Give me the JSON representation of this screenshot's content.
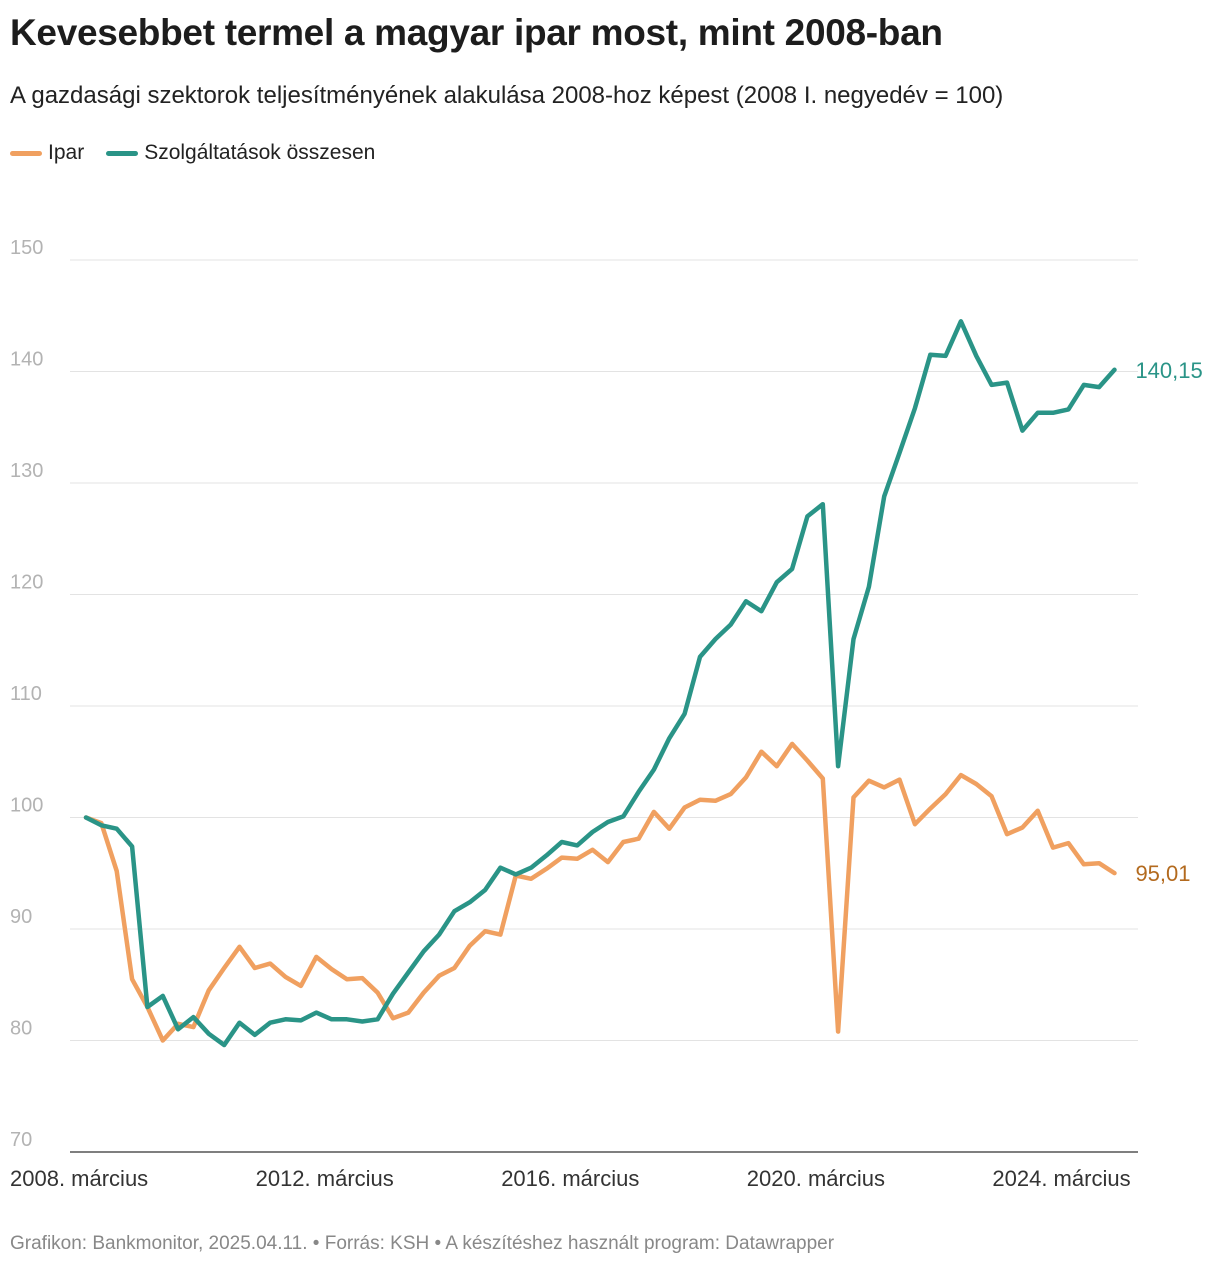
{
  "title": "Kevesebbet termel a magyar ipar most, mint 2008-ban",
  "subtitle": "A gazdasági szektorok teljesítményének alakulása 2008-hoz képest (2008 I. negyedév = 100)",
  "footer": {
    "credit": "Grafikon: Bankmonitor, 2025.04.11.",
    "source": "Forrás: KSH",
    "tool": "A készítéshez használt program: Datawrapper",
    "separator": "•"
  },
  "colors": {
    "ipar": "#f0a060",
    "ipar_label": "#b36a1e",
    "szolg": "#2a9487",
    "grid": "#e3e3e3",
    "tick": "#b3b3b3"
  },
  "chart_data": {
    "type": "line",
    "title": "Kevesebbet termel a magyar ipar most, mint 2008-ban",
    "ylabel": "",
    "xlabel": "",
    "ylim": [
      70,
      150
    ],
    "yticks": [
      70,
      80,
      90,
      100,
      110,
      120,
      130,
      140,
      150
    ],
    "grid": true,
    "legend_position": "top-left",
    "x_start": "2008 Q1",
    "x_ticks": [
      {
        "index": 0,
        "label": "2008. március"
      },
      {
        "index": 16,
        "label": "2012. március"
      },
      {
        "index": 32,
        "label": "2016. március"
      },
      {
        "index": 48,
        "label": "2020. március"
      },
      {
        "index": 64,
        "label": "2024. március"
      }
    ],
    "series": [
      {
        "name": "Ipar",
        "key": "ipar",
        "end_label": "95,01",
        "values": [
          100,
          99.5,
          95.2,
          85.5,
          83,
          80,
          81.5,
          81.2,
          84.5,
          86.5,
          88.4,
          86.5,
          86.9,
          85.7,
          84.9,
          87.5,
          86.4,
          85.5,
          85.6,
          84.3,
          82,
          82.5,
          84.3,
          85.8,
          86.5,
          88.5,
          89.8,
          89.5,
          94.8,
          94.5,
          95.4,
          96.4,
          96.3,
          97.1,
          96,
          97.8,
          98.1,
          100.5,
          99,
          100.9,
          101.6,
          101.5,
          102.1,
          103.6,
          105.9,
          104.6,
          106.6,
          105.1,
          103.5,
          80.8,
          101.8,
          103.3,
          102.7,
          103.4,
          99.4,
          100.8,
          102.1,
          103.8,
          103,
          101.9,
          98.5,
          99.1,
          100.6,
          97.3,
          97.7,
          95.8,
          95.9,
          95.01
        ]
      },
      {
        "name": "Szolgáltatások összesen",
        "key": "szolg",
        "end_label": "140,15",
        "values": [
          100,
          99.3,
          99,
          97.4,
          83,
          84,
          81,
          82.1,
          80.6,
          79.6,
          81.6,
          80.5,
          81.6,
          81.9,
          81.8,
          82.5,
          81.9,
          81.9,
          81.7,
          81.9,
          84.2,
          86.1,
          88,
          89.5,
          91.6,
          92.4,
          93.5,
          95.5,
          94.9,
          95.5,
          96.6,
          97.8,
          97.5,
          98.7,
          99.6,
          100.1,
          102.3,
          104.3,
          107.1,
          109.3,
          114.4,
          116,
          117.3,
          119.4,
          118.5,
          121.1,
          122.3,
          127,
          128.1,
          104.6,
          116,
          120.7,
          128.8,
          132.7,
          136.7,
          141.5,
          141.4,
          144.5,
          141.4,
          138.8,
          139,
          134.7,
          136.3,
          136.3,
          136.6,
          138.8,
          138.6,
          140.15
        ]
      }
    ]
  }
}
